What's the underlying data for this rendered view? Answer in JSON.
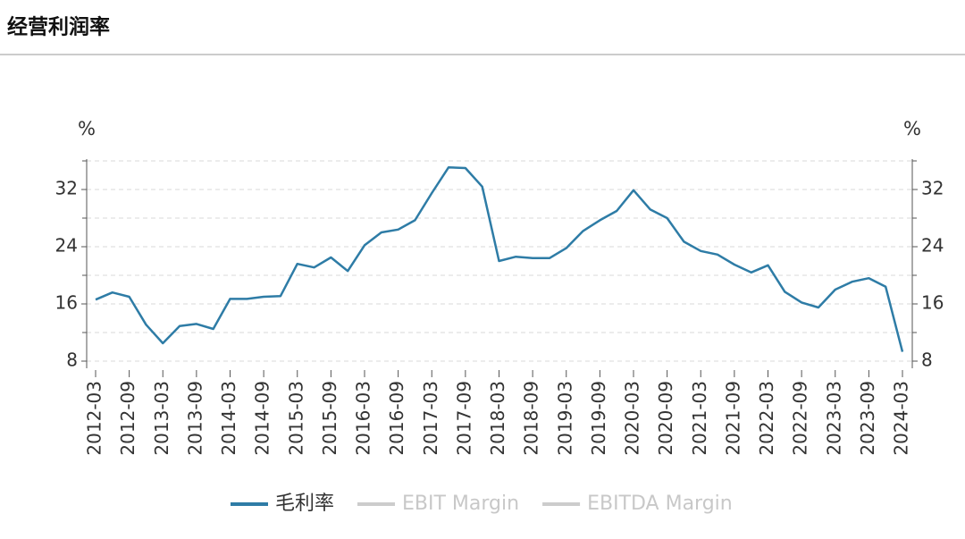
{
  "chart_data": {
    "type": "line",
    "title": "经营利润率",
    "y_label": "%",
    "y2_label": "%",
    "categories": [
      "2012-03",
      null,
      "2012-09",
      null,
      "2013-03",
      null,
      "2013-09",
      null,
      "2014-03",
      null,
      "2014-09",
      null,
      "2015-03",
      null,
      "2015-09",
      null,
      "2016-03",
      null,
      "2016-09",
      null,
      "2017-03",
      null,
      "2017-09",
      null,
      "2018-03",
      null,
      "2018-09",
      null,
      "2019-03",
      null,
      "2019-09",
      null,
      "2020-03",
      null,
      "2020-09",
      null,
      "2021-03",
      null,
      "2021-09",
      null,
      "2022-03",
      null,
      "2022-09",
      null,
      "2023-03",
      null,
      "2023-09",
      null,
      "2024-03"
    ],
    "series": [
      {
        "name": "毛利率",
        "color": "#2e7ca6",
        "values": [
          16.6,
          17.6,
          17.0,
          13.1,
          10.5,
          12.9,
          13.2,
          12.5,
          16.7,
          16.7,
          17.0,
          17.1,
          21.6,
          21.1,
          22.5,
          20.6,
          24.2,
          26.0,
          26.4,
          27.7,
          31.5,
          35.1,
          35.0,
          32.4,
          22.0,
          22.6,
          22.4,
          22.4,
          23.8,
          26.2,
          27.7,
          29.0,
          31.9,
          29.2,
          28.0,
          24.7,
          23.4,
          22.9,
          21.5,
          20.4,
          21.4,
          17.7,
          16.2,
          15.5,
          18.0,
          19.1,
          19.6,
          18.4,
          9.3
        ]
      },
      {
        "name": "EBIT Margin",
        "color": "#cccccc"
      },
      {
        "name": "EBITDA Margin",
        "color": "#cccccc"
      }
    ],
    "ylim": [
      7,
      36.25
    ],
    "yticks": [
      8,
      16,
      24,
      32
    ],
    "minor_yticks": [
      12,
      20,
      28,
      36
    ],
    "y2lim": [
      7,
      36.25
    ],
    "y2ticks": [
      8,
      16,
      24,
      32
    ],
    "grid": true
  }
}
